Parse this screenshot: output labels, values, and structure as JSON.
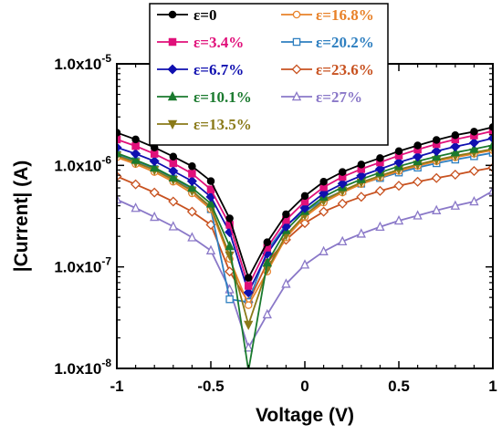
{
  "chart_data": {
    "type": "line",
    "xlabel": "Voltage (V)",
    "ylabel": "|Current| (A)",
    "xlim": [
      -1,
      1
    ],
    "ylim": [
      1e-08,
      1e-05
    ],
    "yscale": "log",
    "x_ticks": [
      -1,
      -0.5,
      0,
      0.5,
      1
    ],
    "x_tick_labels": [
      "-1",
      "-0.5",
      "0",
      "0.5",
      "1"
    ],
    "y_ticks": [
      1e-08,
      1e-07,
      1e-06,
      1e-05
    ],
    "y_tick_labels": [
      {
        "base": "1.0x10",
        "exp": "-8"
      },
      {
        "base": "1.0x10",
        "exp": "-7"
      },
      {
        "base": "1.0x10",
        "exp": "-6"
      },
      {
        "base": "1.0x10",
        "exp": "-5"
      }
    ],
    "grid": false,
    "legend_position": "top",
    "x": [
      -1.0,
      -0.9,
      -0.8,
      -0.7,
      -0.6,
      -0.5,
      -0.4,
      -0.3,
      -0.2,
      -0.1,
      0.0,
      0.1,
      0.2,
      0.3,
      0.4,
      0.5,
      0.6,
      0.7,
      0.8,
      0.9,
      1.0
    ],
    "series": [
      {
        "name": "ε=0",
        "color": "#000000",
        "marker": "circle-filled",
        "values": [
          2.1e-06,
          1.8e-06,
          1.5e-06,
          1.22e-06,
          9.8e-07,
          7e-07,
          3e-07,
          7.8e-08,
          1.75e-07,
          3.3e-07,
          5e-07,
          6.9e-07,
          8.6e-07,
          1.02e-06,
          1.18e-06,
          1.38e-06,
          1.57e-06,
          1.78e-06,
          1.98e-06,
          2.15e-06,
          2.38e-06
        ]
      },
      {
        "name": "ε=3.4%",
        "color": "#e0107a",
        "marker": "square-filled",
        "values": [
          1.8e-06,
          1.55e-06,
          1.3e-06,
          1.05e-06,
          8.3e-07,
          5.8e-07,
          2.6e-07,
          6.5e-08,
          1.55e-07,
          2.9e-07,
          4.4e-07,
          6.1e-07,
          7.7e-07,
          9.2e-07,
          1.07e-06,
          1.25e-06,
          1.43e-06,
          1.62e-06,
          1.8e-06,
          1.97e-06,
          2.18e-06
        ]
      },
      {
        "name": "ε=6.7%",
        "color": "#1010b0",
        "marker": "diamond-filled",
        "values": [
          1.5e-06,
          1.3e-06,
          1.1e-06,
          8.8e-07,
          7e-07,
          4.9e-07,
          2.2e-07,
          5.6e-08,
          1.35e-07,
          2.5e-07,
          3.8e-07,
          5.3e-07,
          6.6e-07,
          7.9e-07,
          9.2e-07,
          1.07e-06,
          1.22e-06,
          1.38e-06,
          1.53e-06,
          1.67e-06,
          1.85e-06
        ]
      },
      {
        "name": "ε=10.1%",
        "color": "#1a7a2e",
        "marker": "triangle-up-filled",
        "values": [
          1.32e-06,
          1.13e-06,
          9.5e-07,
          7.6e-07,
          6e-07,
          4.2e-07,
          1.6e-07,
          9.5e-09,
          1.1e-07,
          2.3e-07,
          3.55e-07,
          4.9e-07,
          6.1e-07,
          7.3e-07,
          8.5e-07,
          9.8e-07,
          1.1e-06,
          1.22e-06,
          1.34e-06,
          1.45e-06,
          1.58e-06
        ]
      },
      {
        "name": "ε=13.5%",
        "color": "#8a7a18",
        "marker": "triangle-down-filled",
        "values": [
          1.25e-06,
          1.07e-06,
          9e-07,
          7.2e-07,
          5.6e-07,
          3.9e-07,
          1.3e-07,
          2.7e-08,
          9.5e-08,
          2.05e-07,
          3.25e-07,
          4.5e-07,
          5.6e-07,
          6.8e-07,
          7.9e-07,
          9.1e-07,
          1.02e-06,
          1.13e-06,
          1.24e-06,
          1.34e-06,
          1.45e-06
        ]
      },
      {
        "name": "ε=16.8%",
        "color": "#e8822a",
        "marker": "circle-open",
        "values": [
          1.2e-06,
          1.03e-06,
          8.6e-07,
          6.9e-07,
          5.3e-07,
          3.7e-07,
          1.2e-07,
          4.2e-08,
          9e-08,
          1.95e-07,
          3.1e-07,
          4.3e-07,
          5.4e-07,
          6.55e-07,
          7.6e-07,
          8.8e-07,
          9.9e-07,
          1.1e-06,
          1.2e-06,
          1.3e-06,
          1.41e-06
        ]
      },
      {
        "name": "ε=20.2%",
        "color": "#2e7fc0",
        "marker": "square-open",
        "values": [
          1.28e-06,
          1.1e-06,
          9.2e-07,
          7.4e-07,
          5.7e-07,
          3.7e-07,
          4.8e-08,
          4.5e-08,
          1.45e-07,
          2.6e-07,
          3.5e-07,
          4.6e-07,
          5.6e-07,
          6.6e-07,
          7.5e-07,
          8.5e-07,
          9.5e-07,
          1.05e-06,
          1.14e-06,
          1.23e-06,
          1.33e-06
        ]
      },
      {
        "name": "ε=23.6%",
        "color": "#c85220",
        "marker": "diamond-open",
        "values": [
          7.8e-07,
          6.5e-07,
          5.4e-07,
          4.4e-07,
          3.5e-07,
          2.6e-07,
          9e-08,
          4.5e-08,
          1.1e-07,
          1.85e-07,
          2.7e-07,
          3.5e-07,
          4.2e-07,
          4.9e-07,
          5.6e-07,
          6.3e-07,
          6.9e-07,
          7.5e-07,
          8.1e-07,
          8.8e-07,
          9.5e-07
        ]
      },
      {
        "name": "ε=27%",
        "color": "#8a78c8",
        "marker": "triangle-up-open",
        "values": [
          4.6e-07,
          3.8e-07,
          3.1e-07,
          2.5e-07,
          1.95e-07,
          1.45e-07,
          6e-08,
          1.6e-08,
          3.4e-08,
          6.8e-08,
          1.05e-07,
          1.42e-07,
          1.78e-07,
          2.12e-07,
          2.48e-07,
          2.85e-07,
          3.2e-07,
          3.6e-07,
          4e-07,
          4.4e-07,
          5.6e-07
        ]
      }
    ]
  }
}
